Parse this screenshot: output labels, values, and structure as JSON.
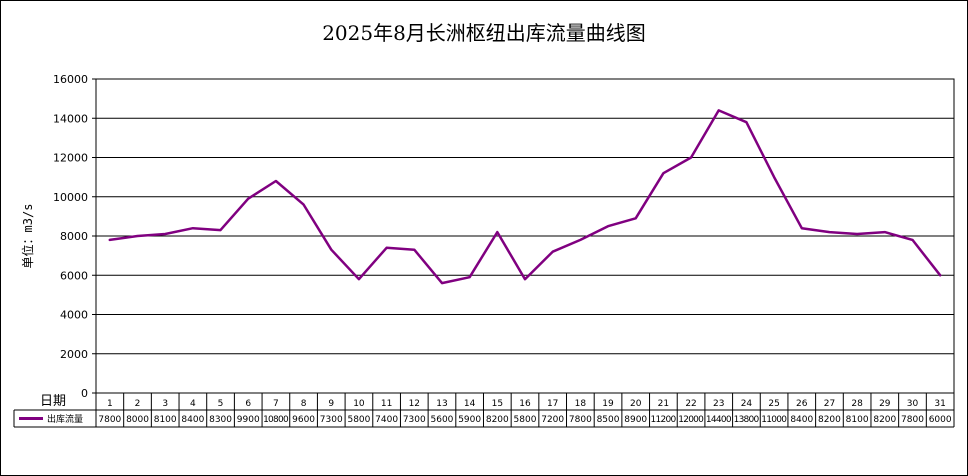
{
  "chart_data": {
    "type": "line",
    "title": "2025年8月长洲枢纽出库流量曲线图",
    "ylabel": "单位：m3/s",
    "xlabel": "日期",
    "ylim": [
      0,
      16000
    ],
    "yticks": [
      "0",
      "2000",
      "4000",
      "6000",
      "8000",
      "10000",
      "12000",
      "14000",
      "16000"
    ],
    "grid": true,
    "categories": [
      "1",
      "2",
      "3",
      "4",
      "5",
      "6",
      "7",
      "8",
      "9",
      "10",
      "11",
      "12",
      "13",
      "14",
      "15",
      "16",
      "17",
      "18",
      "19",
      "20",
      "21",
      "22",
      "23",
      "24",
      "25",
      "26",
      "27",
      "28",
      "29",
      "30",
      "31"
    ],
    "series": [
      {
        "name": "出库流量",
        "color": "#800080",
        "values": [
          7800,
          8000,
          8100,
          8400,
          8300,
          9900,
          10800,
          9600,
          7300,
          5800,
          7400,
          7300,
          5600,
          5900,
          8200,
          5800,
          7200,
          7800,
          8500,
          8900,
          11200,
          12000,
          14400,
          13800,
          11000,
          8400,
          8200,
          8100,
          8200,
          7800,
          6000
        ]
      }
    ]
  }
}
